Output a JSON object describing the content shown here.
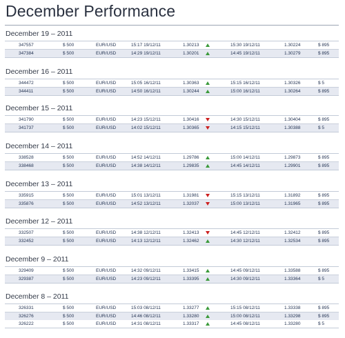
{
  "title": "December Performance",
  "sections": [
    {
      "date": "December 19 – 2011",
      "rows": [
        {
          "id": "347557",
          "amount": "$ 500",
          "pair": "EUR/USD",
          "open_time": "15:17 19/12/11",
          "open_price": "1.30213",
          "direction": "up",
          "close_time": "15:30 19/12/11",
          "close_price": "1.30224",
          "profit": "$ 895"
        },
        {
          "id": "347384",
          "amount": "$ 500",
          "pair": "EUR/USD",
          "open_time": "14:29 19/12/11",
          "open_price": "1.30201",
          "direction": "up",
          "close_time": "14:45 19/12/11",
          "close_price": "1.30279",
          "profit": "$ 895"
        }
      ]
    },
    {
      "date": "December 16 – 2011",
      "rows": [
        {
          "id": "344472",
          "amount": "$ 500",
          "pair": "EUR/USD",
          "open_time": "15:05 16/12/11",
          "open_price": "1.30363",
          "direction": "up",
          "close_time": "15:15 16/12/11",
          "close_price": "1.30326",
          "profit": "$ 5"
        },
        {
          "id": "344411",
          "amount": "$ 500",
          "pair": "EUR/USD",
          "open_time": "14:50 16/12/11",
          "open_price": "1.30244",
          "direction": "up",
          "close_time": "15:00 16/12/11",
          "close_price": "1.30264",
          "profit": "$ 895"
        }
      ]
    },
    {
      "date": "December 15 – 2011",
      "rows": [
        {
          "id": "341790",
          "amount": "$ 500",
          "pair": "EUR/USD",
          "open_time": "14:23 15/12/11",
          "open_price": "1.30416",
          "direction": "down",
          "close_time": "14:30 15/12/11",
          "close_price": "1.30404",
          "profit": "$ 895"
        },
        {
          "id": "341737",
          "amount": "$ 500",
          "pair": "EUR/USD",
          "open_time": "14:02 15/12/11",
          "open_price": "1.30365",
          "direction": "down",
          "close_time": "14:15 15/12/11",
          "close_price": "1.30388",
          "profit": "$ 5"
        }
      ]
    },
    {
      "date": "December 14 – 2011",
      "rows": [
        {
          "id": "338528",
          "amount": "$ 500",
          "pair": "EUR/USD",
          "open_time": "14:52 14/12/11",
          "open_price": "1.29786",
          "direction": "up",
          "close_time": "15:00 14/12/11",
          "close_price": "1.29873",
          "profit": "$ 895"
        },
        {
          "id": "338468",
          "amount": "$ 500",
          "pair": "EUR/USD",
          "open_time": "14:38 14/12/11",
          "open_price": "1.29835",
          "direction": "up",
          "close_time": "14:45 14/12/11",
          "close_price": "1.29901",
          "profit": "$ 895"
        }
      ]
    },
    {
      "date": "December 13 – 2011",
      "rows": [
        {
          "id": "335915",
          "amount": "$ 500",
          "pair": "EUR/USD",
          "open_time": "15:01 13/12/11",
          "open_price": "1.31981",
          "direction": "down",
          "close_time": "15:15 13/12/11",
          "close_price": "1.31892",
          "profit": "$ 895"
        },
        {
          "id": "335876",
          "amount": "$ 500",
          "pair": "EUR/USD",
          "open_time": "14:52 13/12/11",
          "open_price": "1.32037",
          "direction": "down",
          "close_time": "15:00 13/12/11",
          "close_price": "1.31965",
          "profit": "$ 895"
        }
      ]
    },
    {
      "date": "December 12 – 2011",
      "rows": [
        {
          "id": "332507",
          "amount": "$ 500",
          "pair": "EUR/USD",
          "open_time": "14:38 12/12/11",
          "open_price": "1.32413",
          "direction": "down",
          "close_time": "14:45 12/12/11",
          "close_price": "1.32412",
          "profit": "$ 895"
        },
        {
          "id": "332452",
          "amount": "$ 500",
          "pair": "EUR/USD",
          "open_time": "14:13 12/12/11",
          "open_price": "1.32462",
          "direction": "up",
          "close_time": "14:30 12/12/11",
          "close_price": "1.32534",
          "profit": "$ 895"
        }
      ]
    },
    {
      "date": "December 9 – 2011",
      "rows": [
        {
          "id": "329409",
          "amount": "$ 500",
          "pair": "EUR/USD",
          "open_time": "14:32 09/12/11",
          "open_price": "1.33415",
          "direction": "up",
          "close_time": "14:45 09/12/11",
          "close_price": "1.33588",
          "profit": "$ 895"
        },
        {
          "id": "329387",
          "amount": "$ 500",
          "pair": "EUR/USD",
          "open_time": "14:23 09/12/11",
          "open_price": "1.33395",
          "direction": "up",
          "close_time": "14:30 09/12/11",
          "close_price": "1.33364",
          "profit": "$ 5"
        }
      ]
    },
    {
      "date": "December 8 – 2011",
      "rows": [
        {
          "id": "326331",
          "amount": "$ 500",
          "pair": "EUR/USD",
          "open_time": "15:03 08/12/11",
          "open_price": "1.33277",
          "direction": "up",
          "close_time": "15:15 08/12/11",
          "close_price": "1.33338",
          "profit": "$ 895"
        },
        {
          "id": "326276",
          "amount": "$ 500",
          "pair": "EUR/USD",
          "open_time": "14:46 08/12/11",
          "open_price": "1.33280",
          "direction": "up",
          "close_time": "15:00 08/12/11",
          "close_price": "1.33298",
          "profit": "$ 895"
        },
        {
          "id": "326222",
          "amount": "$ 500",
          "pair": "EUR/USD",
          "open_time": "14:31 08/12/11",
          "open_price": "1.33317",
          "direction": "up",
          "close_time": "14:45 08/12/11",
          "close_price": "1.33280",
          "profit": "$ 5"
        }
      ]
    }
  ],
  "colors": {
    "up_arrow": "#3a9a3a",
    "down_arrow": "#cc1f1f",
    "alt_row": "#e6e9f1"
  },
  "icons": {
    "up": "triangle-up-icon",
    "down": "triangle-down-icon"
  }
}
